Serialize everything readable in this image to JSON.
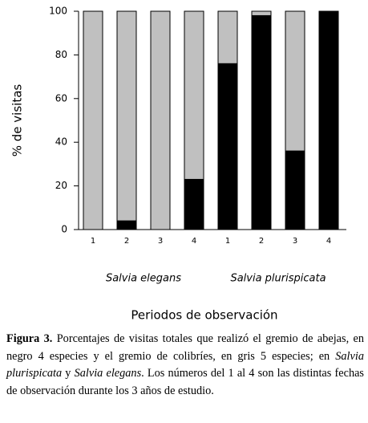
{
  "chart_data": {
    "type": "stacked_bar",
    "y_label": "% de visitas",
    "x_label": "Periodos de observación",
    "categories": [
      "1",
      "2",
      "3",
      "4",
      "1",
      "2",
      "3",
      "4"
    ],
    "groups": [
      "Salvia elegans",
      "Salvia plurispicata"
    ],
    "series": [
      {
        "color": "#000000",
        "values": [
          0,
          4,
          0,
          23,
          76,
          98,
          36,
          100
        ]
      },
      {
        "color": "#c0c0c0",
        "values": [
          100,
          96,
          100,
          77,
          24,
          2,
          64,
          0
        ]
      }
    ],
    "ylim": [
      0,
      100
    ],
    "yticks": [
      0,
      20,
      40,
      60,
      80,
      100
    ],
    "grid": false
  },
  "caption": [
    {
      "text": "Figura 3.",
      "style": "bold"
    },
    {
      "text": " Porcentajes de visitas totales que realizó el gremio de abejas, en negro 4 especies y el gremio de colibríes, en gris 5 especies; en ",
      "style": "normal"
    },
    {
      "text": "Salvia plurispicata",
      "style": "italic"
    },
    {
      "text": " y ",
      "style": "normal"
    },
    {
      "text": "Salvia elegans",
      "style": "italic"
    },
    {
      "text": ". Los números del 1 al 4 son las distintas fechas de observación durante los 3 años de estudio.",
      "style": "normal"
    }
  ]
}
